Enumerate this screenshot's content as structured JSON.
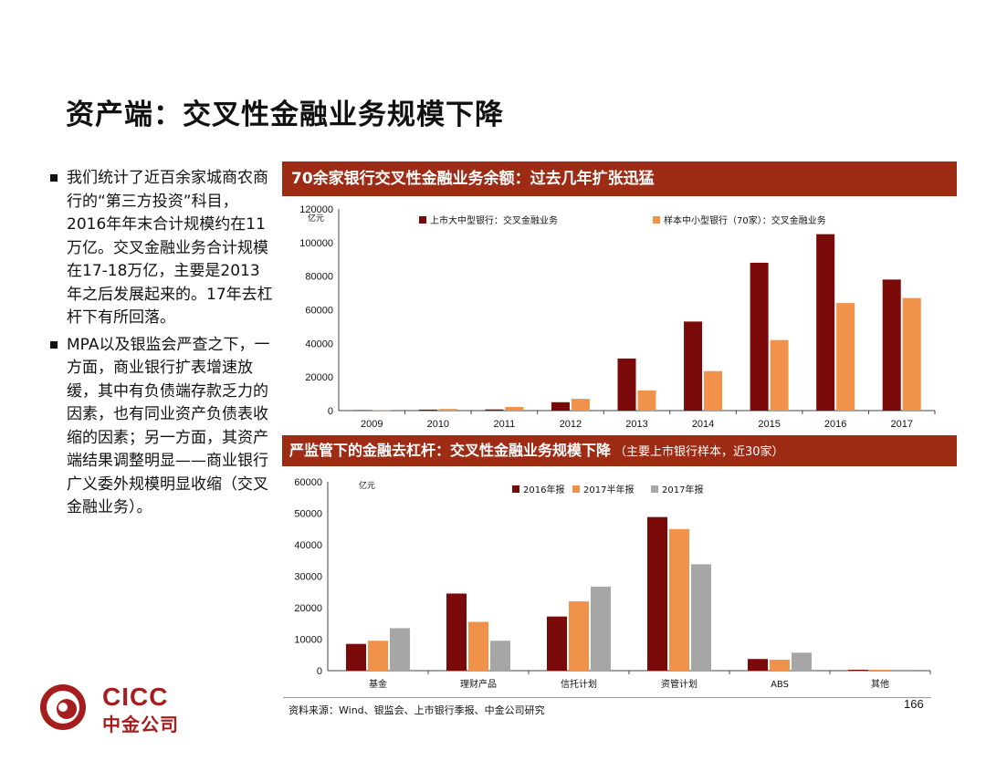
{
  "slide": {
    "title": "资产端：交叉性金融业务规模下降",
    "page_number": "166",
    "source": "资料来源：Wind、银监会、上市银行季报、中金公司研究"
  },
  "bullets": [
    "我们统计了近百余家城商农商行的“第三方投资”科目，2016年年末合计规模约在11万亿。交叉金融业务合计规模在17-18万亿，主要是2013年之后发展起来的。17年去杠杆下有所回落。",
    "MPA以及银监会严查之下，一方面，商业银行扩表增速放缓，其中有负债端存款乏力的因素，也有同业资产负债表收缩的因素；另一方面，其资产端结果调整明显——商业银行广义委外规模明显收缩（交叉金融业务）。"
  ],
  "banners": {
    "chart1": "70余家银行交叉性金融业务余额：过去几年扩张迅猛",
    "chart2": "严监管下的金融去杠杆：交叉性金融业务规模下降",
    "chart2_note": "（主要上市银行样本，近30家）"
  },
  "logo": {
    "en": "CICC",
    "cn": "中金公司"
  },
  "colors": {
    "dark_red": "#7a0a0a",
    "orange": "#f0924a",
    "gray": "#a6a6a6",
    "banner": "#9e2b14"
  },
  "chart_data": [
    {
      "type": "bar",
      "unit_label": "亿元",
      "categories": [
        "2009",
        "2010",
        "2011",
        "2012",
        "2013",
        "2014",
        "2015",
        "2016",
        "2017"
      ],
      "series": [
        {
          "name": "上市大中型银行：交叉金融业务",
          "color": "#7a0a0a",
          "values": [
            300,
            600,
            700,
            5000,
            31000,
            53000,
            88000,
            105000,
            78000
          ]
        },
        {
          "name": "样本中小型银行（70家）：交叉金融业务",
          "color": "#f0924a",
          "values": [
            200,
            1000,
            2200,
            7000,
            12000,
            23500,
            42000,
            64000,
            67000
          ]
        }
      ],
      "ylim": [
        0,
        120000
      ],
      "yticks": [
        "0",
        "20000",
        "40000",
        "60000",
        "80000",
        "100000",
        "120000"
      ],
      "legend": "top"
    },
    {
      "type": "bar",
      "unit_label": "亿元",
      "categories": [
        "基金",
        "理财产品",
        "信托计划",
        "资管计划",
        "ABS",
        "其他"
      ],
      "series": [
        {
          "name": "2016年报",
          "color": "#7a0a0a",
          "values": [
            8500,
            24500,
            17200,
            48800,
            3700,
            300
          ]
        },
        {
          "name": "2017半年报",
          "color": "#f0924a",
          "values": [
            9500,
            15500,
            22000,
            45000,
            3500,
            300
          ]
        },
        {
          "name": "2017年报",
          "color": "#a6a6a6",
          "values": [
            13500,
            9500,
            26700,
            33800,
            5700,
            300
          ]
        }
      ],
      "ylim": [
        0,
        60000
      ],
      "yticks": [
        "0",
        "10000",
        "20000",
        "30000",
        "40000",
        "50000",
        "60000"
      ],
      "legend": "top"
    }
  ]
}
